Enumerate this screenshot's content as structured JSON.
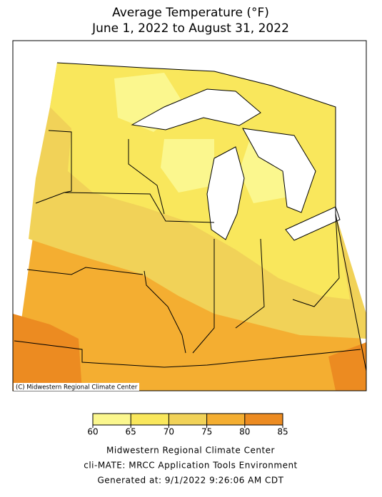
{
  "title": [
    "Average Temperature (°F)",
    "June 1, 2022 to August 31, 2022"
  ],
  "map": {
    "credit": "(C) Midwestern Regional Climate Center"
  },
  "legend": {
    "ticks": [
      60,
      65,
      70,
      75,
      80,
      85
    ],
    "colors": [
      "#fbf78e",
      "#f9e75c",
      "#f1d258",
      "#f4ae31",
      "#ec8b21"
    ]
  },
  "footer": [
    "Midwestern Regional Climate Center",
    "cli-MATE: MRCC Application Tools Environment",
    "Generated at: 9/1/2022 9:26:06 AM CDT"
  ]
}
